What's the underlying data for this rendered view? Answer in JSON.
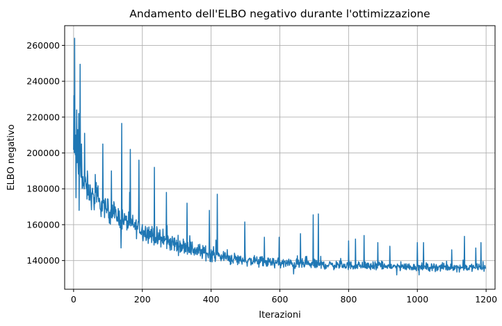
{
  "chart_data": {
    "type": "line",
    "title": "Andamento dell'ELBO negativo durante l'ottimizzazione",
    "xlabel": "Iterazioni",
    "ylabel": "ELBO negativo",
    "xlim": [
      -26,
      1226
    ],
    "ylim": [
      124000,
      271000
    ],
    "xticks": [
      0,
      200,
      400,
      600,
      800,
      1000,
      1200
    ],
    "yticks": [
      140000,
      160000,
      180000,
      200000,
      220000,
      240000,
      260000
    ],
    "xtick_labels": [
      "0",
      "200",
      "400",
      "600",
      "800",
      "1000",
      "1200"
    ],
    "ytick_labels": [
      "140000",
      "160000",
      "180000",
      "200000",
      "220000",
      "240000",
      "260000"
    ],
    "grid": true,
    "line_color": "#1f77b4",
    "n_points": 1200,
    "trend": [
      [
        0,
        201000
      ],
      [
        10,
        196000
      ],
      [
        30,
        182000
      ],
      [
        60,
        174000
      ],
      [
        100,
        168000
      ],
      [
        150,
        162000
      ],
      [
        200,
        157000
      ],
      [
        250,
        152000
      ],
      [
        300,
        149000
      ],
      [
        350,
        146000
      ],
      [
        400,
        143500
      ],
      [
        450,
        141500
      ],
      [
        500,
        140000
      ],
      [
        600,
        138500
      ],
      [
        700,
        137800
      ],
      [
        800,
        137200
      ],
      [
        900,
        136800
      ],
      [
        1000,
        136400
      ],
      [
        1100,
        136200
      ],
      [
        1200,
        136000
      ]
    ],
    "noise_envelope": [
      [
        0,
        12000
      ],
      [
        100,
        9000
      ],
      [
        300,
        7000
      ],
      [
        500,
        4500
      ],
      [
        800,
        3500
      ],
      [
        1200,
        3000
      ]
    ],
    "spikes": [
      {
        "x": 1,
        "y": 232000
      },
      {
        "x": 3,
        "y": 264000
      },
      {
        "x": 6,
        "y": 210000
      },
      {
        "x": 9,
        "y": 224000
      },
      {
        "x": 12,
        "y": 213000
      },
      {
        "x": 15,
        "y": 222000
      },
      {
        "x": 19,
        "y": 249500
      },
      {
        "x": 23,
        "y": 205000
      },
      {
        "x": 32,
        "y": 211000
      },
      {
        "x": 40,
        "y": 190000
      },
      {
        "x": 63,
        "y": 188000
      },
      {
        "x": 85,
        "y": 205000
      },
      {
        "x": 110,
        "y": 190000
      },
      {
        "x": 140,
        "y": 216500
      },
      {
        "x": 165,
        "y": 202000
      },
      {
        "x": 190,
        "y": 196000
      },
      {
        "x": 235,
        "y": 192000
      },
      {
        "x": 270,
        "y": 178000
      },
      {
        "x": 330,
        "y": 172000
      },
      {
        "x": 395,
        "y": 168000
      },
      {
        "x": 418,
        "y": 177000
      },
      {
        "x": 498,
        "y": 161500
      },
      {
        "x": 555,
        "y": 153000
      },
      {
        "x": 598,
        "y": 153000
      },
      {
        "x": 660,
        "y": 155000
      },
      {
        "x": 697,
        "y": 165500
      },
      {
        "x": 712,
        "y": 166000
      },
      {
        "x": 800,
        "y": 151000
      },
      {
        "x": 820,
        "y": 152000
      },
      {
        "x": 845,
        "y": 154000
      },
      {
        "x": 885,
        "y": 150000
      },
      {
        "x": 920,
        "y": 148000
      },
      {
        "x": 1000,
        "y": 150000
      },
      {
        "x": 1018,
        "y": 150000
      },
      {
        "x": 1100,
        "y": 146000
      },
      {
        "x": 1137,
        "y": 153500
      },
      {
        "x": 1170,
        "y": 147000
      },
      {
        "x": 1185,
        "y": 150000
      }
    ],
    "dips": [
      {
        "x": 7,
        "y": 175000
      },
      {
        "x": 16,
        "y": 168000
      },
      {
        "x": 138,
        "y": 147000
      },
      {
        "x": 640,
        "y": 132500
      },
      {
        "x": 940,
        "y": 132000
      },
      {
        "x": 1005,
        "y": 132000
      }
    ]
  }
}
